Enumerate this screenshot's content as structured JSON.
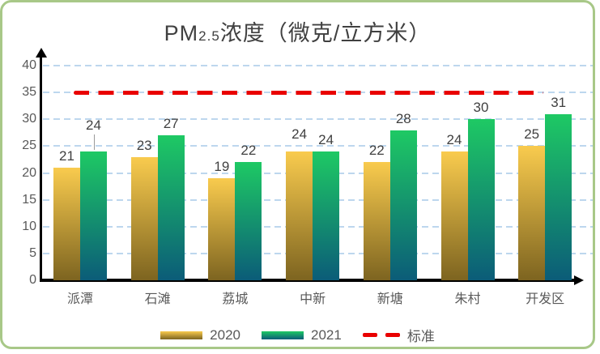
{
  "frame": {
    "border_color": "#a8c888",
    "background": "#ffffff"
  },
  "title": {
    "prefix": "PM",
    "subscript": "2.5",
    "suffix": "浓度（微克/立方米）"
  },
  "chart_data": {
    "type": "bar",
    "title": "PM2.5浓度（微克/立方米）",
    "categories": [
      "派潭",
      "石滩",
      "荔城",
      "中新",
      "新塘",
      "朱村",
      "开发区"
    ],
    "series": [
      {
        "name": "2020",
        "values": [
          21,
          23,
          19,
          24,
          22,
          24,
          25
        ],
        "gradient_top": "#f9cb4e",
        "gradient_bottom": "#7d6420"
      },
      {
        "name": "2021",
        "values": [
          24,
          27,
          22,
          24,
          28,
          30,
          31
        ],
        "gradient_top": "#1ec964",
        "gradient_bottom": "#0b5c78"
      }
    ],
    "reference_line": {
      "label": "标准",
      "value": 35,
      "color": "#e90000",
      "style": "dashed"
    },
    "ylim": [
      0,
      40
    ],
    "yticks": [
      0,
      5,
      10,
      15,
      20,
      25,
      30,
      35,
      40
    ],
    "grid": true,
    "gridline_color": "#bdd7ee",
    "axis_color": "#000000",
    "legend_position": "bottom",
    "data_labels": true,
    "label_adjustments": [
      {
        "series": 1,
        "index": 0,
        "raise": 18,
        "leader": true
      },
      {
        "series": 0,
        "index": 3,
        "raise": 7,
        "leader": false
      }
    ]
  },
  "legend": {
    "item_2020": "2020",
    "item_2021": "2021",
    "item_standard": "标准"
  }
}
